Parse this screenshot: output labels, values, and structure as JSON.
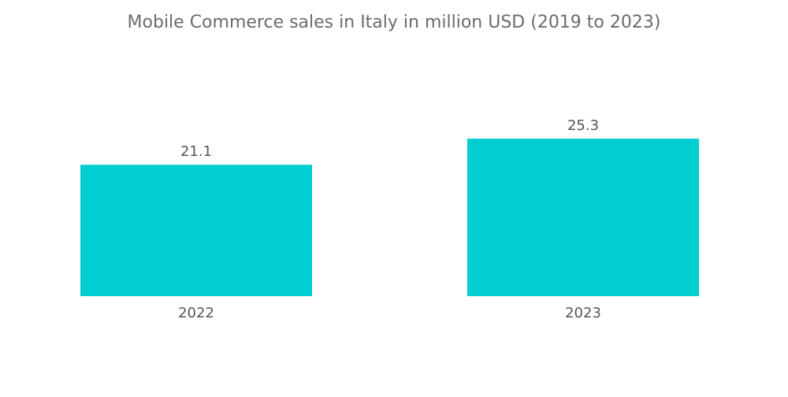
{
  "chart_data": {
    "type": "bar",
    "title": "Mobile Commerce sales in Italy in million USD (2019 to 2023)",
    "categories": [
      "2022",
      "2023"
    ],
    "values": [
      21.1,
      25.3
    ],
    "value_labels": [
      "21.1",
      "25.3"
    ],
    "xlabel": "",
    "ylabel": "",
    "ylim": [
      0,
      25.3
    ],
    "grid": false,
    "bar_color": "#00ced1"
  }
}
